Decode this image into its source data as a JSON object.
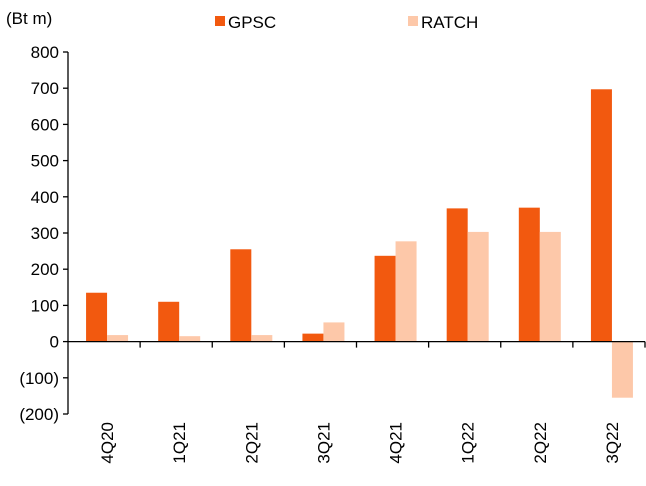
{
  "chart_data": {
    "type": "bar",
    "y_axis_label": "(Bt m)",
    "categories": [
      "4Q20",
      "1Q21",
      "2Q21",
      "3Q21",
      "4Q21",
      "1Q22",
      "2Q22",
      "3Q22"
    ],
    "series": [
      {
        "name": "GPSC",
        "color": "#f2590f",
        "values": [
          135,
          110,
          255,
          22,
          237,
          368,
          370,
          697
        ]
      },
      {
        "name": "RATCH",
        "color": "#fdc8a9",
        "values": [
          18,
          15,
          18,
          53,
          277,
          303,
          303,
          -155
        ]
      }
    ],
    "ylim": [
      -200,
      800
    ],
    "yticks": [
      {
        "value": -200,
        "label": "(200)"
      },
      {
        "value": -100,
        "label": "(100)"
      },
      0,
      100,
      200,
      300,
      400,
      500,
      600,
      700,
      800
    ],
    "grid": false,
    "legend": "top"
  }
}
